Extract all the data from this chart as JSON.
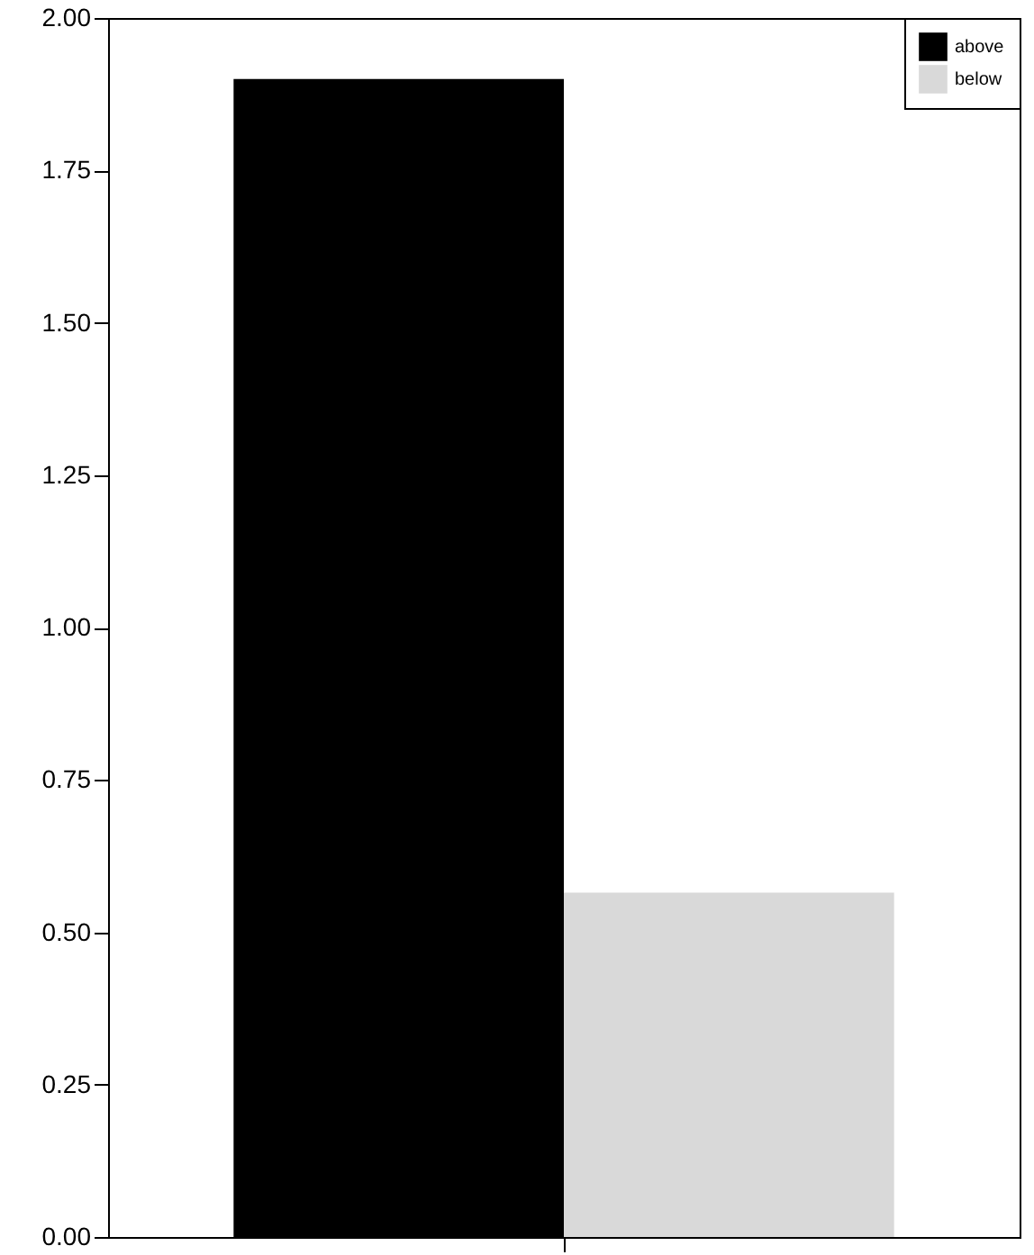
{
  "chart_data": {
    "type": "bar",
    "categories": [
      null
    ],
    "series": [
      {
        "name": "above",
        "color": "#000000",
        "values": [
          1.9
        ]
      },
      {
        "name": "below",
        "color": "#d9d9d9",
        "values": [
          0.565
        ]
      }
    ],
    "ylim": [
      0,
      2
    ],
    "yticks": [
      {
        "value": 0,
        "label": "0.00"
      },
      {
        "value": 0.25,
        "label": "0.25"
      },
      {
        "value": 0.5,
        "label": "0.50"
      },
      {
        "value": 0.75,
        "label": "0.75"
      },
      {
        "value": 1,
        "label": "1.00"
      },
      {
        "value": 1.25,
        "label": "1.25"
      },
      {
        "value": 1.5,
        "label": "1.50"
      },
      {
        "value": 1.75,
        "label": "1.75"
      },
      {
        "value": 2,
        "label": "2.00"
      }
    ],
    "legend": "top right",
    "grid": false
  }
}
